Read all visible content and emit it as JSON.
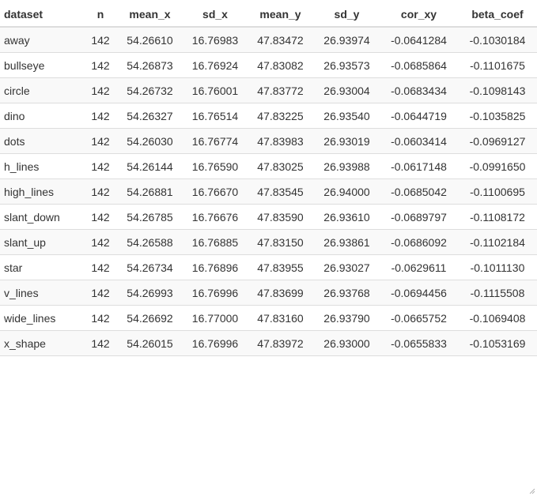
{
  "table": {
    "columns": [
      "dataset",
      "n",
      "mean_x",
      "sd_x",
      "mean_y",
      "sd_y",
      "cor_xy",
      "beta_coef"
    ],
    "rows": [
      [
        "away",
        "142",
        "54.26610",
        "16.76983",
        "47.83472",
        "26.93974",
        "-0.0641284",
        "-0.1030184"
      ],
      [
        "bullseye",
        "142",
        "54.26873",
        "16.76924",
        "47.83082",
        "26.93573",
        "-0.0685864",
        "-0.1101675"
      ],
      [
        "circle",
        "142",
        "54.26732",
        "16.76001",
        "47.83772",
        "26.93004",
        "-0.0683434",
        "-0.1098143"
      ],
      [
        "dino",
        "142",
        "54.26327",
        "16.76514",
        "47.83225",
        "26.93540",
        "-0.0644719",
        "-0.1035825"
      ],
      [
        "dots",
        "142",
        "54.26030",
        "16.76774",
        "47.83983",
        "26.93019",
        "-0.0603414",
        "-0.0969127"
      ],
      [
        "h_lines",
        "142",
        "54.26144",
        "16.76590",
        "47.83025",
        "26.93988",
        "-0.0617148",
        "-0.0991650"
      ],
      [
        "high_lines",
        "142",
        "54.26881",
        "16.76670",
        "47.83545",
        "26.94000",
        "-0.0685042",
        "-0.1100695"
      ],
      [
        "slant_down",
        "142",
        "54.26785",
        "16.76676",
        "47.83590",
        "26.93610",
        "-0.0689797",
        "-0.1108172"
      ],
      [
        "slant_up",
        "142",
        "54.26588",
        "16.76885",
        "47.83150",
        "26.93861",
        "-0.0686092",
        "-0.1102184"
      ],
      [
        "star",
        "142",
        "54.26734",
        "16.76896",
        "47.83955",
        "26.93027",
        "-0.0629611",
        "-0.1011130"
      ],
      [
        "v_lines",
        "142",
        "54.26993",
        "16.76996",
        "47.83699",
        "26.93768",
        "-0.0694456",
        "-0.1115508"
      ],
      [
        "wide_lines",
        "142",
        "54.26692",
        "16.77000",
        "47.83160",
        "26.93790",
        "-0.0665752",
        "-0.1069408"
      ],
      [
        "x_shape",
        "142",
        "54.26015",
        "16.76996",
        "47.83972",
        "26.93000",
        "-0.0655833",
        "-0.1053169"
      ]
    ]
  },
  "icons": {
    "resize_grip": "resize-grip-icon"
  }
}
